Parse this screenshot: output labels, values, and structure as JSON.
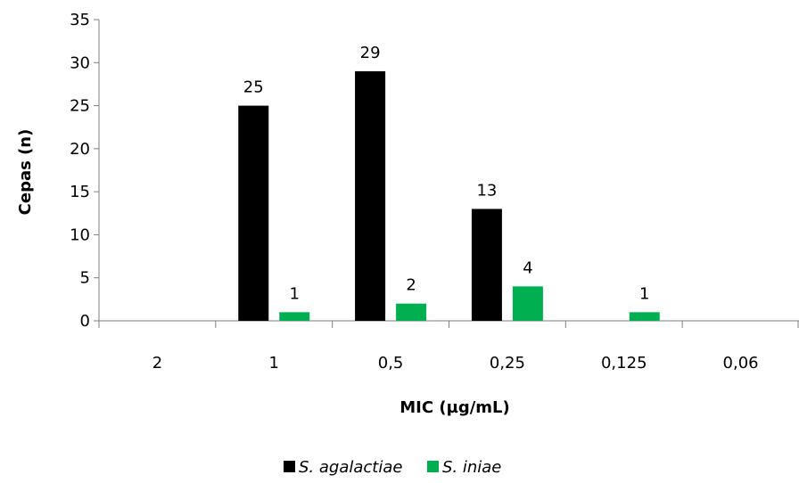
{
  "chart_data": {
    "type": "bar",
    "title": "",
    "xlabel": "MIC (µg/mL)",
    "ylabel": "Cepas (n)",
    "categories": [
      "2",
      "1",
      "0,5",
      "0,25",
      "0,125",
      "0,06"
    ],
    "ylim": [
      0,
      35
    ],
    "yticks": [
      0,
      5,
      10,
      15,
      20,
      25,
      30,
      35
    ],
    "grid": false,
    "legend_position": "bottom",
    "series": [
      {
        "name": "S. agalactiae",
        "color": "#000000",
        "values": [
          0,
          25,
          29,
          13,
          0,
          0
        ]
      },
      {
        "name": "S. iniae",
        "color": "#00b050",
        "values": [
          0,
          1,
          2,
          4,
          1,
          0
        ]
      }
    ]
  }
}
